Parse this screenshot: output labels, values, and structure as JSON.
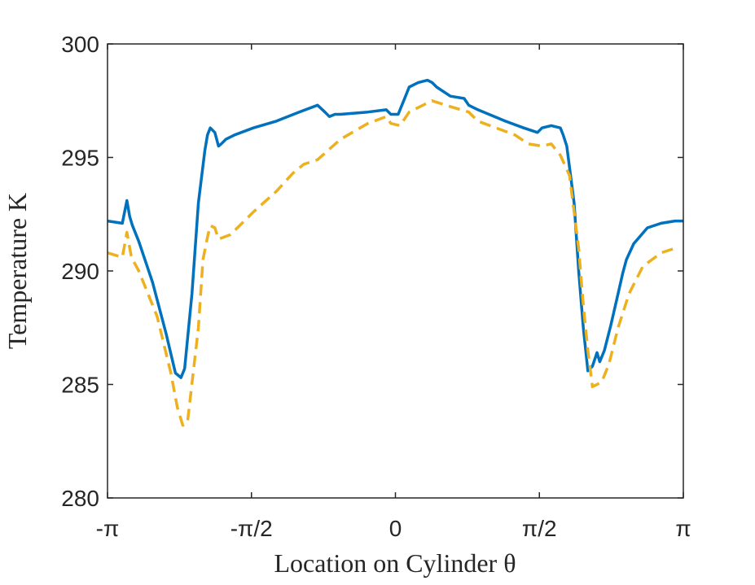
{
  "chart_data": {
    "type": "line",
    "xlabel": "Location on Cylinder θ",
    "ylabel": "Temperature K",
    "xlim": [
      -3.14159,
      3.14159
    ],
    "ylim": [
      280,
      300
    ],
    "xticks": [
      {
        "value": -3.14159,
        "label": "-π"
      },
      {
        "value": -1.5708,
        "label": "-π/2"
      },
      {
        "value": 0,
        "label": "0"
      },
      {
        "value": 1.5708,
        "label": "π/2"
      },
      {
        "value": 3.14159,
        "label": "π"
      }
    ],
    "yticks": [
      280,
      285,
      290,
      295,
      300
    ],
    "grid": false,
    "series": [
      {
        "color": "#0072BD",
        "style": "solid",
        "x": [
          -3.142,
          -2.98,
          -2.93,
          -2.9,
          -2.87,
          -2.8,
          -2.65,
          -2.5,
          -2.4,
          -2.34,
          -2.3,
          -2.22,
          -2.15,
          -2.08,
          -2.05,
          -2.02,
          -1.97,
          -1.93,
          -1.9,
          -1.85,
          -1.75,
          -1.55,
          -1.3,
          -1.05,
          -0.85,
          -0.77,
          -0.72,
          -0.66,
          -0.6,
          -0.3,
          -0.1,
          -0.05,
          0.03,
          0.1,
          0.15,
          0.25,
          0.35,
          0.4,
          0.45,
          0.6,
          0.75,
          0.8,
          0.9,
          1.2,
          1.4,
          1.55,
          1.6,
          1.7,
          1.8,
          1.83,
          1.87,
          1.95,
          2.0,
          2.05,
          2.1,
          2.15,
          2.2,
          2.23,
          2.28,
          2.35,
          2.43,
          2.48,
          2.52,
          2.6,
          2.75,
          2.9,
          3.05,
          3.142
        ],
        "y": [
          292.2,
          292.1,
          293.1,
          292.4,
          292.0,
          291.3,
          289.5,
          287.2,
          285.5,
          285.3,
          285.7,
          289.0,
          293.0,
          295.3,
          296.0,
          296.3,
          296.1,
          295.5,
          295.6,
          295.8,
          296.0,
          296.3,
          296.6,
          297.0,
          297.3,
          297.0,
          296.8,
          296.9,
          296.9,
          297.0,
          297.1,
          296.9,
          296.9,
          297.6,
          298.1,
          298.3,
          298.4,
          298.3,
          298.1,
          297.7,
          297.6,
          297.3,
          297.1,
          296.6,
          296.3,
          296.1,
          296.3,
          296.4,
          296.3,
          296.0,
          295.5,
          293.0,
          290.0,
          287.5,
          285.6,
          285.8,
          286.4,
          286.0,
          286.5,
          287.6,
          289.0,
          289.9,
          290.5,
          291.2,
          291.9,
          292.1,
          292.2,
          292.2
        ]
      },
      {
        "color": "#EDB120",
        "style": "dashed",
        "x": [
          -3.142,
          -2.98,
          -2.93,
          -2.88,
          -2.8,
          -2.6,
          -2.45,
          -2.38,
          -2.32,
          -2.27,
          -2.15,
          -2.1,
          -2.05,
          -2.02,
          -1.97,
          -1.93,
          -1.8,
          -1.55,
          -1.3,
          -1.12,
          -1.0,
          -0.85,
          -0.6,
          -0.3,
          -0.1,
          -0.05,
          0.05,
          0.15,
          0.3,
          0.4,
          0.55,
          0.8,
          0.9,
          1.3,
          1.45,
          1.6,
          1.7,
          1.8,
          1.9,
          2.0,
          2.05,
          2.1,
          2.15,
          2.25,
          2.33,
          2.43,
          2.55,
          2.7,
          2.9,
          3.05
        ],
        "y": [
          290.8,
          290.6,
          291.7,
          290.6,
          290.0,
          288.0,
          285.5,
          284.0,
          283.2,
          283.3,
          287.5,
          290.5,
          291.5,
          292.0,
          291.9,
          291.4,
          291.6,
          292.6,
          293.5,
          294.3,
          294.7,
          294.9,
          295.8,
          296.5,
          296.8,
          296.5,
          296.4,
          297.0,
          297.3,
          297.5,
          297.3,
          297.0,
          296.6,
          296.0,
          295.6,
          295.5,
          295.6,
          295.1,
          294.2,
          291.0,
          288.5,
          286.5,
          284.9,
          285.1,
          285.9,
          287.5,
          289.0,
          290.2,
          290.8,
          291.0
        ]
      }
    ]
  }
}
